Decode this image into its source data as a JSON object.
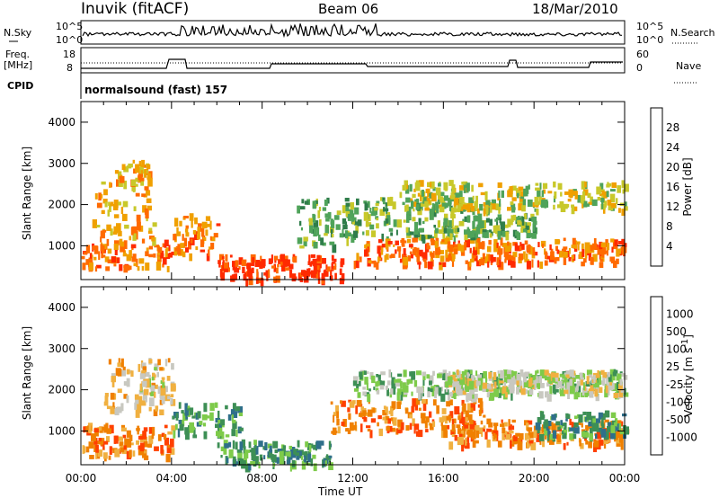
{
  "header": {
    "station": "Inuvik (fitACF)",
    "beam": "Beam 06",
    "date": "18/Mar/2010"
  },
  "strips": {
    "left_labels": {
      "nsky": "N.Sky",
      "freq_line1": "Freq.",
      "freq_line2": "[MHz]",
      "cpid": "CPID"
    },
    "right_labels": {
      "nsearch": "N.Search",
      "nave": "Nave"
    },
    "noise_ticks": {
      "top": "10^5",
      "bottom": "10^0"
    },
    "freq_ticks": {
      "top": "18",
      "bottom": "8"
    },
    "nave_ticks": {
      "top": "60",
      "bottom": "0"
    },
    "cpid_text": "normalsound (fast) 157"
  },
  "chart_data": [
    {
      "type": "heatmap",
      "name": "power-panel",
      "ylabel": "Slant Range [km]",
      "xlabel": "Time UT",
      "x_ticks": [
        "00:00",
        "04:00",
        "08:00",
        "12:00",
        "16:00",
        "20:00",
        "00:00"
      ],
      "x_range_hours": [
        0,
        24
      ],
      "y_ticks": [
        1000,
        2000,
        3000,
        4000
      ],
      "ylim": [
        180,
        4500
      ],
      "colorbar": {
        "label": "Power [dB]",
        "ticks": [
          "4",
          "8",
          "12",
          "16",
          "20",
          "24",
          "28"
        ],
        "colors": [
          "#0000ff",
          "#1c3fa0",
          "#2f7d4a",
          "#4fa35a",
          "#c8c82a",
          "#f0a000",
          "#ff6a00",
          "#ff2a00"
        ]
      },
      "bands": [
        {
          "t0": 0.0,
          "t1": 3.8,
          "r0": 500,
          "r1": 1200,
          "level": 6
        },
        {
          "t0": 0.5,
          "t1": 3.2,
          "r0": 1200,
          "r1": 2600,
          "level": 5
        },
        {
          "t0": 1.5,
          "t1": 3.0,
          "r0": 2600,
          "r1": 3100,
          "level": 5
        },
        {
          "t0": 3.8,
          "t1": 6.0,
          "r0": 800,
          "r1": 1800,
          "level": 6
        },
        {
          "t0": 6.0,
          "t1": 11.5,
          "r0": 200,
          "r1": 800,
          "level": 7
        },
        {
          "t0": 9.5,
          "t1": 12.0,
          "r0": 1000,
          "r1": 2200,
          "level": 3
        },
        {
          "t0": 11.5,
          "t1": 17.5,
          "r0": 1200,
          "r1": 2200,
          "level": 3
        },
        {
          "t0": 12.0,
          "t1": 24.0,
          "r0": 600,
          "r1": 1200,
          "level": 6
        },
        {
          "t0": 14.0,
          "t1": 24.0,
          "r0": 1900,
          "r1": 2600,
          "level": 4
        },
        {
          "t0": 16.0,
          "t1": 20.0,
          "r0": 1300,
          "r1": 1800,
          "level": 3
        }
      ]
    },
    {
      "type": "heatmap",
      "name": "velocity-panel",
      "ylabel": "Slant Range [km]",
      "xlabel": "Time UT",
      "x_ticks": [
        "00:00",
        "04:00",
        "08:00",
        "12:00",
        "16:00",
        "20:00",
        "00:00"
      ],
      "x_range_hours": [
        0,
        24
      ],
      "y_ticks": [
        1000,
        2000,
        3000,
        4000
      ],
      "ylim": [
        180,
        4500
      ],
      "colorbar": {
        "label": "Velocity [m s^-1]",
        "ticks": [
          "1000",
          "500",
          "100",
          "25",
          "-25",
          "-100",
          "-500",
          "-1000"
        ],
        "colors": [
          "#1c3fa0",
          "#2f6f8a",
          "#3d8f55",
          "#7ecb4a",
          "#c8c8c0",
          "#f0b040",
          "#f08000",
          "#ff4000",
          "#ff0000"
        ]
      },
      "bands": [
        {
          "t0": 0.0,
          "t1": 4.0,
          "r0": 400,
          "r1": 1200,
          "level": 6
        },
        {
          "t0": 1.0,
          "t1": 4.0,
          "r0": 1500,
          "r1": 2800,
          "level": 5
        },
        {
          "t0": 2.5,
          "t1": 4.0,
          "r0": 1800,
          "r1": 2600,
          "level": 4
        },
        {
          "t0": 4.0,
          "t1": 7.0,
          "r0": 900,
          "r1": 1700,
          "level": 2
        },
        {
          "t0": 6.0,
          "t1": 11.0,
          "r0": 200,
          "r1": 800,
          "level": 2
        },
        {
          "t0": 11.0,
          "t1": 18.0,
          "r0": 1000,
          "r1": 1800,
          "level": 6
        },
        {
          "t0": 12.0,
          "t1": 24.0,
          "r0": 1900,
          "r1": 2500,
          "level": 3
        },
        {
          "t0": 16.0,
          "t1": 24.0,
          "r0": 1900,
          "r1": 2500,
          "level": 4
        },
        {
          "t0": 16.0,
          "t1": 24.0,
          "r0": 700,
          "r1": 1300,
          "level": 6
        },
        {
          "t0": 20.0,
          "t1": 24.0,
          "r0": 900,
          "r1": 1500,
          "level": 2
        }
      ]
    }
  ]
}
